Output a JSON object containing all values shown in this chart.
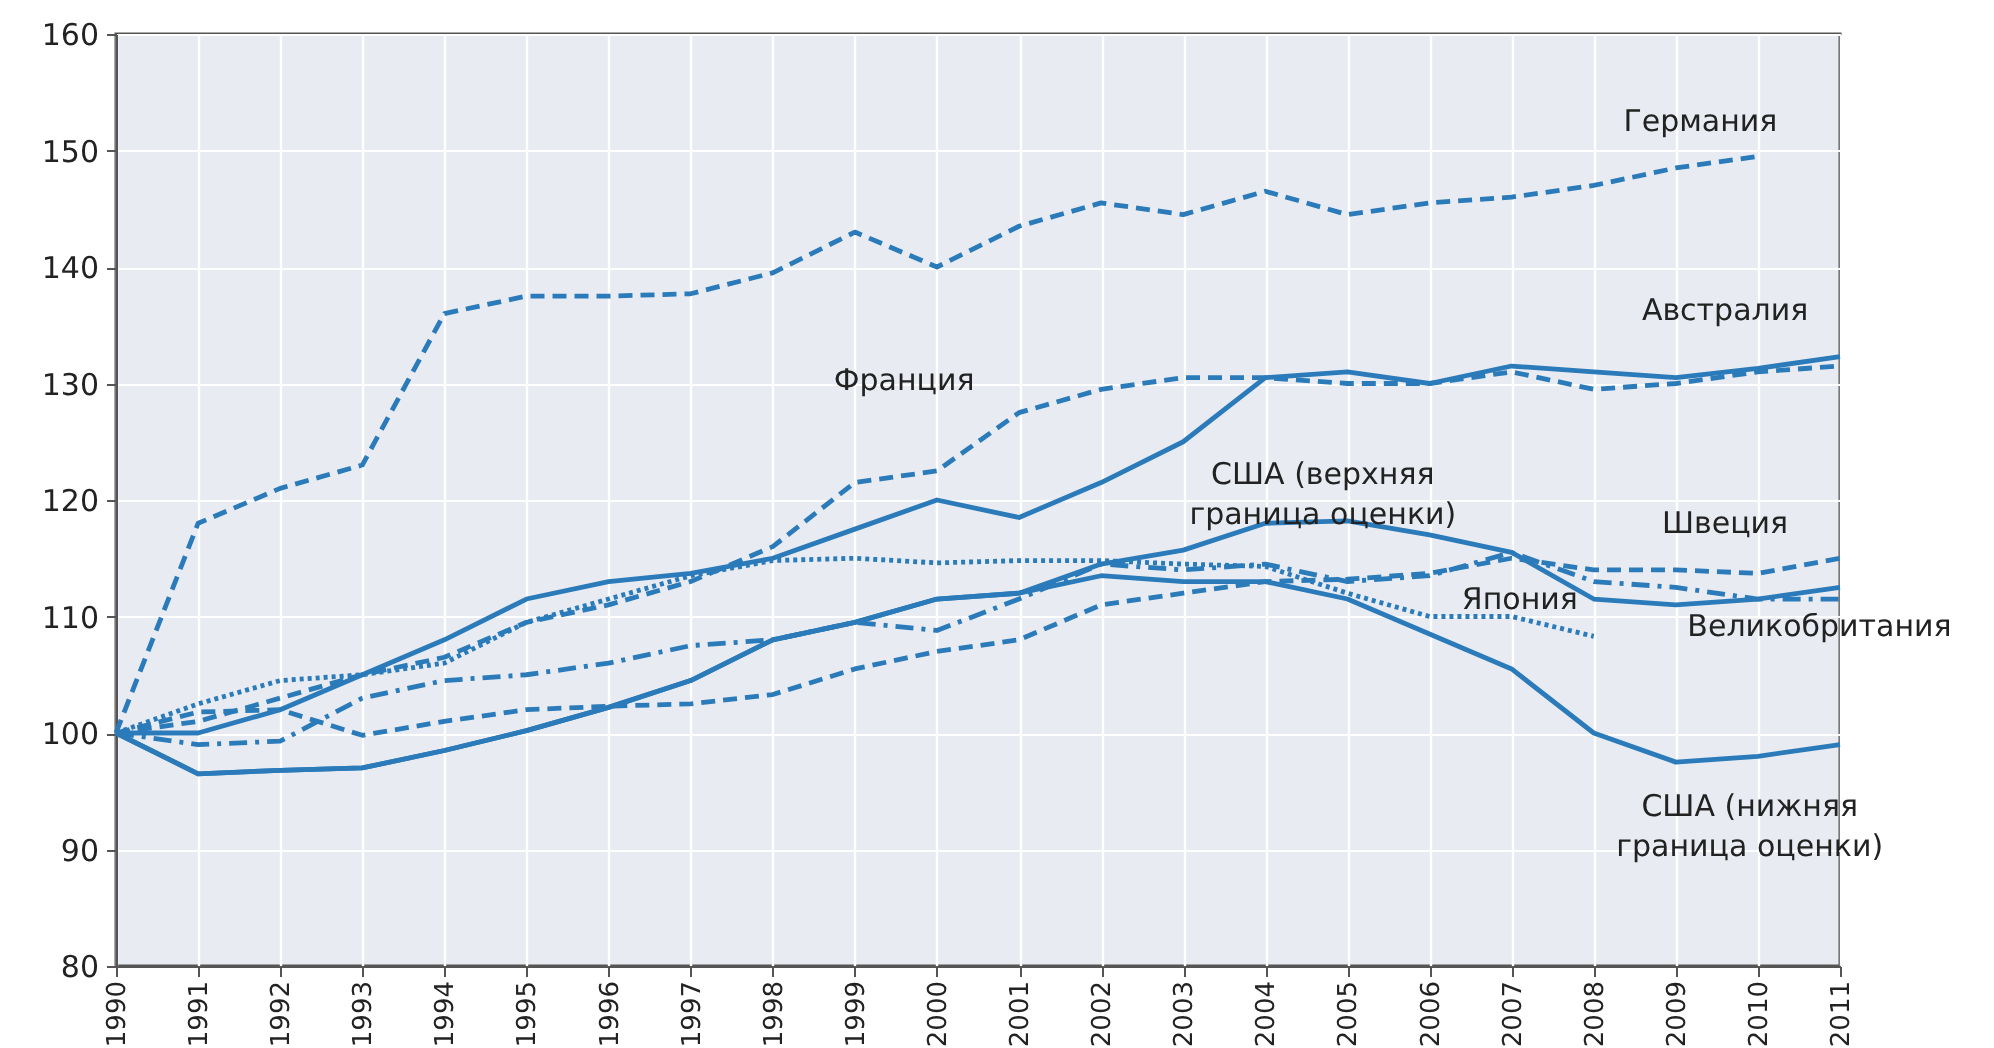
{
  "chart_data": {
    "type": "line",
    "x": [
      1990,
      1991,
      1992,
      1993,
      1994,
      1995,
      1996,
      1997,
      1998,
      1999,
      2000,
      2001,
      2002,
      2003,
      2004,
      2005,
      2006,
      2007,
      2008,
      2009,
      2010,
      2011
    ],
    "xlim": [
      1990,
      2011
    ],
    "xticks": [
      1990,
      1991,
      1992,
      1993,
      1994,
      1995,
      1996,
      1997,
      1998,
      1999,
      2000,
      2001,
      2002,
      2003,
      2004,
      2005,
      2006,
      2007,
      2008,
      2009,
      2010,
      2011
    ],
    "ylim": [
      80,
      160
    ],
    "yticks": [
      80,
      90,
      100,
      110,
      120,
      130,
      140,
      150,
      160
    ],
    "grid": true,
    "marker": "none",
    "series": [
      {
        "name": "Германия",
        "color": "#2b7bba",
        "line_style": "dashed",
        "values": [
          100,
          118,
          121,
          123,
          136,
          137.5,
          137.5,
          137.7,
          139.5,
          143,
          140,
          143.5,
          145.5,
          144.5,
          146.5,
          144.5,
          145.5,
          146,
          147,
          148.5,
          149.5,
          null
        ]
      },
      {
        "name": "Австралия",
        "color": "#2b7bba",
        "line_style": "solid",
        "values": [
          100,
          100,
          102,
          105,
          108,
          111.5,
          113,
          113.7,
          115,
          117.5,
          120,
          118.5,
          121.5,
          125,
          130.5,
          131,
          130,
          131.5,
          131,
          130.5,
          131.3,
          132.3
        ]
      },
      {
        "name": "Франция",
        "color": "#2b7bba",
        "line_style": "dashed",
        "values": [
          100,
          101,
          103,
          105,
          106.5,
          109.5,
          111,
          113,
          116,
          121.5,
          122.5,
          127.5,
          129.5,
          130.5,
          130.5,
          130,
          130,
          131,
          129.5,
          130,
          131,
          131.5
        ]
      },
      {
        "name": "США (верхняя граница оценки)",
        "color": "#2b7bba",
        "line_style": "solid",
        "values": [
          100,
          96.5,
          96.8,
          97,
          98.5,
          100.2,
          102.2,
          104.5,
          108,
          109.5,
          111.5,
          112,
          114.5,
          115.7,
          118,
          118.2,
          117,
          115.5,
          111.5,
          111,
          111.5,
          112.5
        ]
      },
      {
        "name": "Швеция",
        "color": "#2b7bba",
        "line_style": "dashed",
        "values": [
          100,
          101.8,
          102,
          99.8,
          101,
          102,
          102.3,
          102.5,
          103.3,
          105.5,
          107,
          108,
          111,
          112,
          113,
          113.2,
          113.7,
          115,
          114,
          114,
          113.7,
          115
        ]
      },
      {
        "name": "Япония",
        "color": "#2b7bba",
        "line_style": "dotted",
        "values": [
          100,
          102.5,
          104.5,
          105,
          106,
          109.5,
          111.5,
          113.5,
          114.8,
          115,
          114.6,
          114.8,
          114.8,
          114.5,
          114.3,
          112,
          110,
          110,
          108.3,
          null,
          null,
          null
        ]
      },
      {
        "name": "Великобритания",
        "color": "#2b7bba",
        "line_style": "dashdot",
        "values": [
          100,
          99,
          99.3,
          103,
          104.5,
          105,
          106,
          107.5,
          108,
          109.5,
          108.8,
          111.5,
          114.5,
          114,
          114.5,
          113,
          113.5,
          115.5,
          113,
          112.5,
          111.5,
          111.5
        ]
      },
      {
        "name": "США (нижняя граница оценки)",
        "color": "#2b7bba",
        "line_style": "solid",
        "values": [
          100,
          96.5,
          96.8,
          97,
          98.5,
          100.2,
          102.2,
          104.5,
          108,
          109.5,
          111.5,
          112,
          113.5,
          113,
          113,
          111.5,
          108.5,
          105.5,
          100,
          97.5,
          98,
          99
        ]
      }
    ]
  }
}
